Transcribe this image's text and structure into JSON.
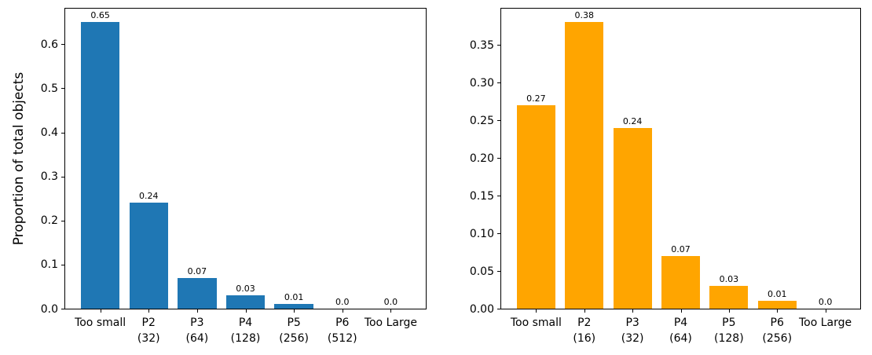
{
  "figure": {
    "background": "#ffffff"
  },
  "chart_data": [
    {
      "type": "bar",
      "title": "",
      "xlabel": "",
      "ylabel": "Proportion of total objects",
      "bar_color": "#1f77b4",
      "categories": [
        "Too small",
        "P2",
        "P3",
        "P4",
        "P5",
        "P6",
        "Too Large"
      ],
      "category_sublabels": [
        "",
        "(32)",
        "(64)",
        "(128)",
        "(256)",
        "(512)",
        ""
      ],
      "values": [
        0.65,
        0.24,
        0.07,
        0.03,
        0.01,
        0.0,
        0.0
      ],
      "bar_labels": [
        "0.65",
        "0.24",
        "0.07",
        "0.03",
        "0.01",
        "0.0",
        "0.0"
      ],
      "yticks": [
        0.0,
        0.1,
        0.2,
        0.3,
        0.4,
        0.5,
        0.6
      ],
      "ytick_labels": [
        "0.0",
        "0.1",
        "0.2",
        "0.3",
        "0.4",
        "0.5",
        "0.6"
      ],
      "ylim": [
        0,
        0.6825
      ],
      "grid": false,
      "legend": null
    },
    {
      "type": "bar",
      "title": "",
      "xlabel": "",
      "ylabel": "",
      "bar_color": "#ffa500",
      "categories": [
        "Too small",
        "P2",
        "P3",
        "P4",
        "P5",
        "P6",
        "Too Large"
      ],
      "category_sublabels": [
        "",
        "(16)",
        "(32)",
        "(64)",
        "(128)",
        "(256)",
        ""
      ],
      "values": [
        0.27,
        0.38,
        0.24,
        0.07,
        0.03,
        0.01,
        0.0
      ],
      "bar_labels": [
        "0.27",
        "0.38",
        "0.24",
        "0.07",
        "0.03",
        "0.01",
        "0.0"
      ],
      "yticks": [
        0.0,
        0.05,
        0.1,
        0.15,
        0.2,
        0.25,
        0.3,
        0.35
      ],
      "ytick_labels": [
        "0.00",
        "0.05",
        "0.10",
        "0.15",
        "0.20",
        "0.25",
        "0.30",
        "0.35"
      ],
      "ylim": [
        0,
        0.399
      ],
      "grid": false,
      "legend": null
    }
  ]
}
